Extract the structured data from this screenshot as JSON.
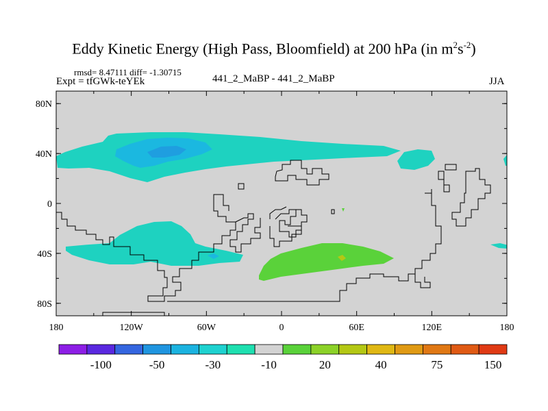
{
  "title": {
    "main": "Eddy Kinetic Energy (High Pass, Bloomfield) at 200 hPa (in m",
    "exp1": "2",
    "mid": "s",
    "exp2": "-2",
    "close": ")"
  },
  "stats": "rmsd= 8.47111 diff= -1.30715",
  "expt": "Expt = tfGWk-teYEk",
  "center_label": "441_2_MaBP - 441_2_MaBP",
  "season": "JJA",
  "map": {
    "lat_range": [
      -90,
      90
    ],
    "lon_range": [
      -180,
      180
    ],
    "lat_ticks": [
      {
        "value": 80,
        "label": "80N"
      },
      {
        "value": 40,
        "label": "40N"
      },
      {
        "value": 0,
        "label": "0"
      },
      {
        "value": -40,
        "label": "40S"
      },
      {
        "value": -80,
        "label": "80S"
      }
    ],
    "lon_ticks": [
      {
        "value": -180,
        "label": "180"
      },
      {
        "value": -120,
        "label": "120W"
      },
      {
        "value": -60,
        "label": "60W"
      },
      {
        "value": 0,
        "label": "0"
      },
      {
        "value": 60,
        "label": "60E"
      },
      {
        "value": 120,
        "label": "120E"
      },
      {
        "value": 180,
        "label": "180"
      }
    ],
    "background_color": "#d3d3d3"
  },
  "colorbar": {
    "colors": [
      "#8d1ee6",
      "#5a28e0",
      "#3466e0",
      "#1f95e0",
      "#1bb3e0",
      "#1ed2d0",
      "#1ee0b0",
      "#d3d3d3",
      "#5ad23a",
      "#8cd228",
      "#b4c814",
      "#e0b814",
      "#e09a14",
      "#e07814",
      "#e05a14",
      "#e03a14"
    ],
    "labels": [
      "-100",
      "-50",
      "-30",
      "-10",
      "20",
      "40",
      "75",
      "150"
    ]
  }
}
